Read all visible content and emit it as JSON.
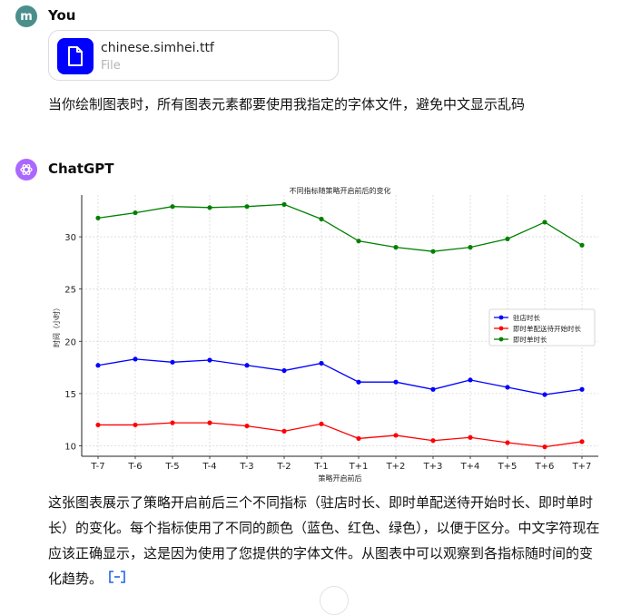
{
  "user": {
    "avatar_letter": "m",
    "name": "You"
  },
  "file": {
    "name": "chinese.simhei.ttf",
    "type": "File"
  },
  "user_message": "当你绘制图表时，所有图表元素都要使用我指定的字体文件，避免中文显示乱码",
  "assistant": {
    "name": "ChatGPT"
  },
  "reply": "这张图表展示了策略开启前后三个不同指标（驻店时长、即时单配送待开始时长、即时单时长）的变化。每个指标使用了不同的颜色（蓝色、红色、绿色），以便于区分。中文字符现在应该正确显示，这是因为使用了您提供的字体文件。从图表中可以观察到各指标随时间的变化趋势。",
  "icons": {
    "avatar_gpt": "openai-logo-icon",
    "file": "file-icon",
    "source": "code-source-icon"
  },
  "colors": {
    "accent_file": "#0000ff",
    "user_avatar": "#4a8f8c",
    "gpt_avatar": "#ab68ff"
  },
  "chart_data": {
    "type": "line",
    "title": "不同指标随策略开启前后的变化",
    "xlabel": "策略开启前后",
    "ylabel": "时间（小时）",
    "categories": [
      "T-7",
      "T-6",
      "T-5",
      "T-4",
      "T-3",
      "T-2",
      "T-1",
      "T+1",
      "T+2",
      "T+3",
      "T+4",
      "T+5",
      "T+6",
      "T+7"
    ],
    "ylim": [
      9,
      34
    ],
    "yticks": [
      10,
      15,
      20,
      25,
      30
    ],
    "grid": true,
    "legend_position": "center-right",
    "series": [
      {
        "name": "驻店时长",
        "color": "#0000ff",
        "values": [
          17.7,
          18.3,
          18.0,
          18.2,
          17.7,
          17.2,
          17.9,
          16.1,
          16.1,
          15.4,
          16.3,
          15.6,
          14.9,
          15.4
        ]
      },
      {
        "name": "即时单配送待开始时长",
        "color": "#ff0000",
        "values": [
          12.0,
          12.0,
          12.2,
          12.2,
          11.9,
          11.4,
          12.1,
          10.7,
          11.0,
          10.5,
          10.8,
          10.3,
          9.9,
          10.4
        ]
      },
      {
        "name": "即时单时长",
        "color": "#008000",
        "values": [
          31.8,
          32.3,
          32.9,
          32.8,
          32.9,
          33.1,
          31.7,
          29.6,
          29.0,
          28.6,
          29.0,
          29.8,
          31.4,
          29.2
        ]
      }
    ]
  }
}
